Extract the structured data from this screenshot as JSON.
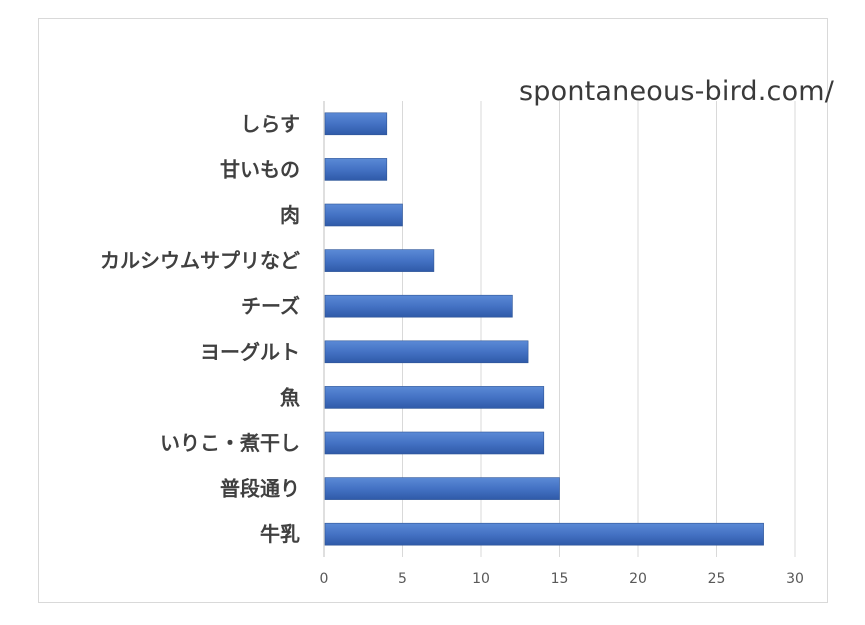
{
  "watermark": "spontaneous-bird.com/",
  "chart_data": {
    "type": "bar",
    "orientation": "horizontal",
    "categories": [
      "しらす",
      "甘いもの",
      "肉",
      "カルシウムサプリなど",
      "チーズ",
      "ヨーグルト",
      "魚",
      "いりこ・煮干し",
      "普段通り",
      "牛乳"
    ],
    "values": [
      4,
      4,
      5,
      7,
      12,
      13,
      14,
      14,
      15,
      28
    ],
    "xlim": [
      0,
      30
    ],
    "xticks": [
      0,
      5,
      10,
      15,
      20,
      25,
      30
    ],
    "grid": true,
    "legend": "none",
    "bar_color": "#4472c4"
  }
}
